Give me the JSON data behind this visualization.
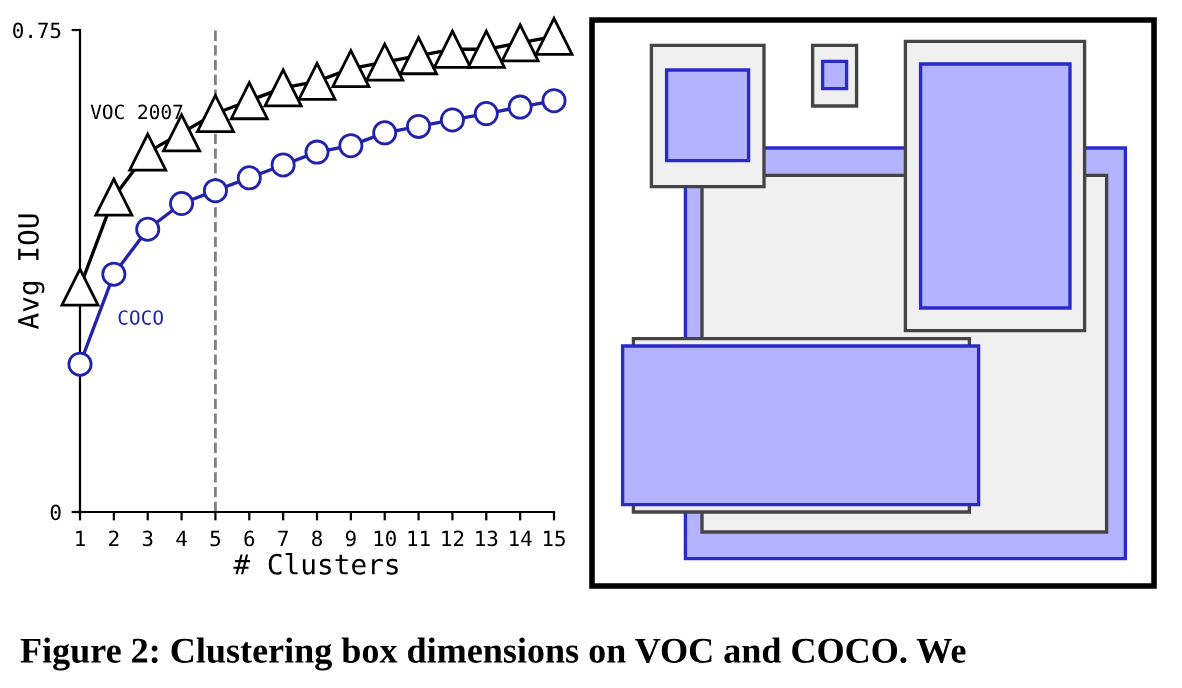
{
  "chart_data": {
    "type": "line",
    "x": [
      1,
      2,
      3,
      4,
      5,
      6,
      7,
      8,
      9,
      10,
      11,
      12,
      13,
      14,
      15
    ],
    "series": [
      {
        "name": "VOC 2007",
        "color": "#000000",
        "marker": "triangle",
        "values": [
          0.35,
          0.49,
          0.56,
          0.59,
          0.62,
          0.64,
          0.66,
          0.67,
          0.69,
          0.7,
          0.71,
          0.72,
          0.72,
          0.73,
          0.74
        ]
      },
      {
        "name": "COCO",
        "color": "#2222aa",
        "marker": "circle",
        "values": [
          0.23,
          0.37,
          0.44,
          0.48,
          0.5,
          0.52,
          0.54,
          0.56,
          0.57,
          0.59,
          0.6,
          0.61,
          0.62,
          0.63,
          0.64
        ]
      }
    ],
    "xlabel": "# Clusters",
    "ylabel": "Avg IOU",
    "xlim": [
      1,
      15
    ],
    "xticks": [
      1,
      2,
      3,
      4,
      5,
      6,
      7,
      8,
      9,
      10,
      11,
      12,
      13,
      14,
      15
    ],
    "ylim": [
      0,
      0.75
    ],
    "yticks": [
      0,
      0.75
    ],
    "ref_lines": [
      {
        "axis": "x",
        "value": 5,
        "color": "#808080",
        "line_style": "dashed"
      }
    ],
    "grid": false,
    "legend": false,
    "line_style": "solid",
    "annotations": [
      "Figure 2: Clustering box dimensions on VOC and COCO. We"
    ]
  }
}
